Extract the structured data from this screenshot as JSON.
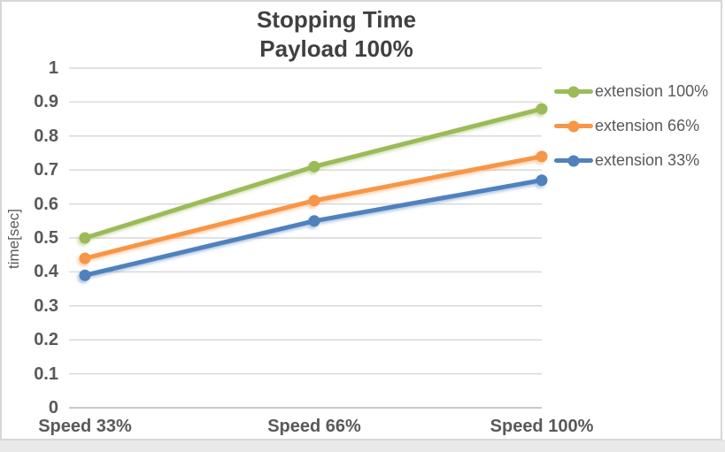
{
  "page": {
    "frame_border_color": "#d7d7d7",
    "bottom_strip_color": "#e9e9e9"
  },
  "chart_data": {
    "type": "line",
    "title": "Stopping Time",
    "subtitle": "Payload 100%",
    "ylabel": "time[sec]",
    "xlabel": "",
    "categories": [
      "Speed 33%",
      "Speed 66%",
      "Speed 100%"
    ],
    "series": [
      {
        "name": "extension 100%",
        "color": "#9BBB59",
        "values": [
          0.5,
          0.71,
          0.88
        ]
      },
      {
        "name": "extension 66%",
        "color": "#F79646",
        "values": [
          0.44,
          0.61,
          0.74
        ]
      },
      {
        "name": "extension 33%",
        "color": "#4F81BD",
        "values": [
          0.39,
          0.55,
          0.67
        ]
      }
    ],
    "ylim": [
      0,
      1
    ],
    "ytick_step": 0.1,
    "ytick_labels": [
      "0",
      "0.1",
      "0.2",
      "0.3",
      "0.4",
      "0.5",
      "0.6",
      "0.7",
      "0.8",
      "0.9",
      "1"
    ],
    "grid": true,
    "gridline_color": "#D9D9D9",
    "axis_line_color": "#C9C9C9",
    "text_color": "#595959",
    "title_color": "#404040",
    "legend_position": "right",
    "marker": "circle"
  }
}
